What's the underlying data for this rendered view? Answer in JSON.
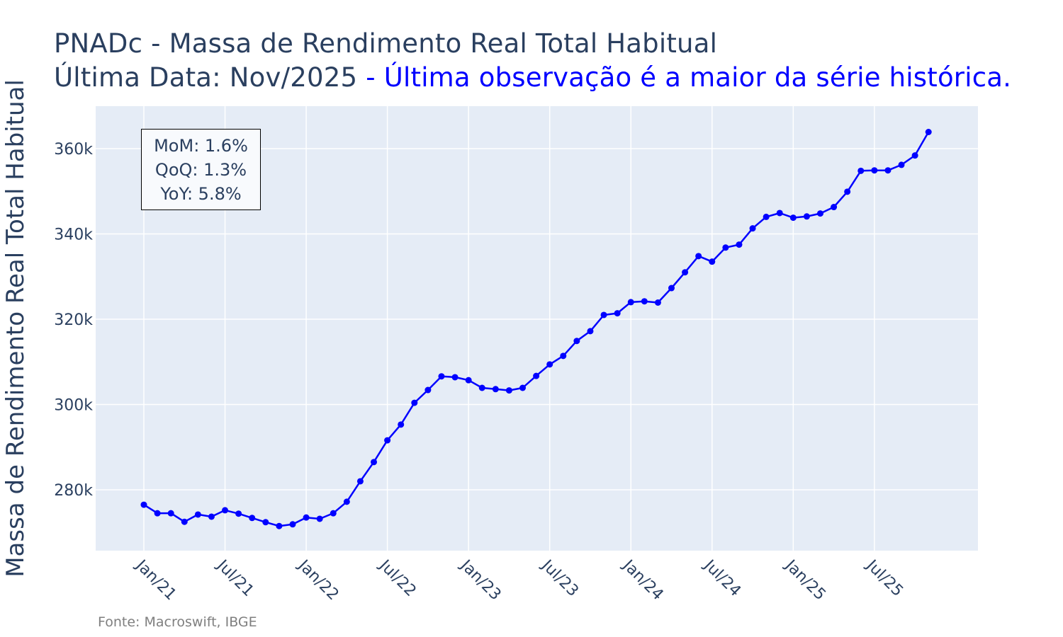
{
  "header": {
    "title_line1": "PNADc - Massa de Rendimento Real Total Habitual",
    "title_line2_prefix": "Última Data: Nov/2025",
    "title_line2_highlight": " - Última observação é a maior da série histórica."
  },
  "stats": {
    "mom": "MoM: 1.6%",
    "qoq": "QoQ: 1.3%",
    "yoy": "YoY: 5.8%"
  },
  "footer": {
    "source": "Fonte: Macroswift, IBGE"
  },
  "colors": {
    "line": "#0000ff",
    "plot_bg": "#e5ecf6",
    "grid": "#ffffff",
    "text": "#2a3f5f",
    "highlight": "#0000ff",
    "footer": "#7f7f7f"
  },
  "chart_data": {
    "type": "line",
    "title": "PNADc - Massa de Rendimento Real Total Habitual",
    "subtitle": "Última Data: Nov/2025 - Última observação é a maior da série histórica.",
    "xlabel": "",
    "ylabel": "Massa de Rendimento Real Total Habitual",
    "ylim": [
      265000,
      370000
    ],
    "y_ticks": [
      280000,
      300000,
      320000,
      340000,
      360000
    ],
    "y_tick_labels": [
      "280k",
      "300k",
      "320k",
      "340k",
      "360k"
    ],
    "x_tick_labels": [
      "Jan/21",
      "Jul/21",
      "Jan/22",
      "Jul/22",
      "Jan/23",
      "Jul/23",
      "Jan/24",
      "Jul/24",
      "Jan/25",
      "Jul/25"
    ],
    "x_tick_indices": [
      0,
      6,
      12,
      18,
      24,
      30,
      36,
      42,
      48,
      54
    ],
    "grid": true,
    "legend": "none",
    "markers": true,
    "annotations": [
      "MoM: 1.6%",
      "QoQ: 1.3%",
      "YoY: 5.8%",
      "Fonte: Macroswift, IBGE"
    ],
    "series": [
      {
        "name": "Massa de Rendimento Real Total Habitual",
        "color": "#0000ff",
        "x": [
          "Jan/21",
          "Feb/21",
          "Mar/21",
          "Apr/21",
          "May/21",
          "Jun/21",
          "Jul/21",
          "Aug/21",
          "Sep/21",
          "Oct/21",
          "Nov/21",
          "Dec/21",
          "Jan/22",
          "Feb/22",
          "Mar/22",
          "Apr/22",
          "May/22",
          "Jun/22",
          "Jul/22",
          "Aug/22",
          "Sep/22",
          "Oct/22",
          "Nov/22",
          "Dec/22",
          "Jan/23",
          "Feb/23",
          "Mar/23",
          "Apr/23",
          "May/23",
          "Jun/23",
          "Jul/23",
          "Aug/23",
          "Sep/23",
          "Oct/23",
          "Nov/23",
          "Dec/23",
          "Jan/24",
          "Feb/24",
          "Mar/24",
          "Apr/24",
          "May/24",
          "Jun/24",
          "Jul/24",
          "Aug/24",
          "Sep/24",
          "Oct/24",
          "Nov/24",
          "Dec/24",
          "Jan/25",
          "Feb/25",
          "Mar/25",
          "Apr/25",
          "May/25",
          "Jun/25",
          "Jul/25",
          "Aug/25",
          "Sep/25",
          "Oct/25",
          "Nov/25"
        ],
        "values": [
          276500,
          274500,
          274500,
          272500,
          274200,
          273700,
          275200,
          274400,
          273400,
          272400,
          271500,
          271900,
          273500,
          273200,
          274500,
          277200,
          282000,
          286500,
          291600,
          295300,
          300400,
          303400,
          306600,
          306400,
          305700,
          303900,
          303600,
          303300,
          303900,
          306700,
          309400,
          311400,
          314900,
          317200,
          321000,
          321400,
          324000,
          324200,
          323900,
          327300,
          331000,
          334800,
          333500,
          336800,
          337500,
          341300,
          344000,
          344900,
          343800,
          344100,
          344800,
          346300,
          349900,
          354800,
          354900,
          354900,
          356200,
          358400,
          363900
        ]
      }
    ]
  }
}
